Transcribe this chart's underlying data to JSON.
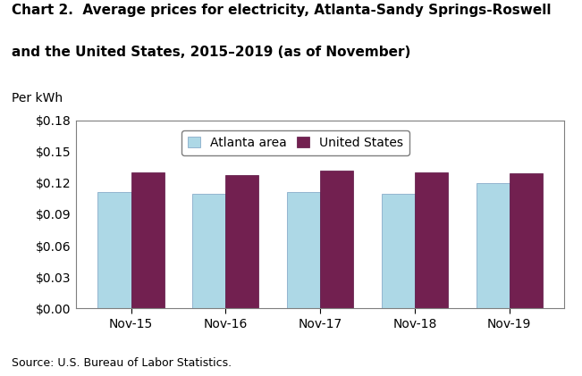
{
  "title_line1": "Chart 2.  Average prices for electricity, Atlanta-Sandy Springs-Roswell",
  "title_line2": "and the United States, 2015–2019 (as of November)",
  "ylabel": "Per kWh",
  "source": "Source: U.S. Bureau of Labor Statistics.",
  "categories": [
    "Nov-15",
    "Nov-16",
    "Nov-17",
    "Nov-18",
    "Nov-19"
  ],
  "atlanta_values": [
    0.111,
    0.11,
    0.111,
    0.11,
    0.12
  ],
  "us_values": [
    0.13,
    0.128,
    0.132,
    0.13,
    0.129
  ],
  "atlanta_color": "#ADD8E6",
  "us_color": "#722050",
  "bar_width": 0.35,
  "ylim": [
    0.0,
    0.18
  ],
  "yticks": [
    0.0,
    0.03,
    0.06,
    0.09,
    0.12,
    0.15,
    0.18
  ],
  "legend_labels": [
    "Atlanta area",
    "United States"
  ],
  "background_color": "#ffffff",
  "plot_bg_color": "#ffffff",
  "title_fontsize": 11,
  "label_fontsize": 10,
  "tick_fontsize": 10,
  "source_fontsize": 9
}
